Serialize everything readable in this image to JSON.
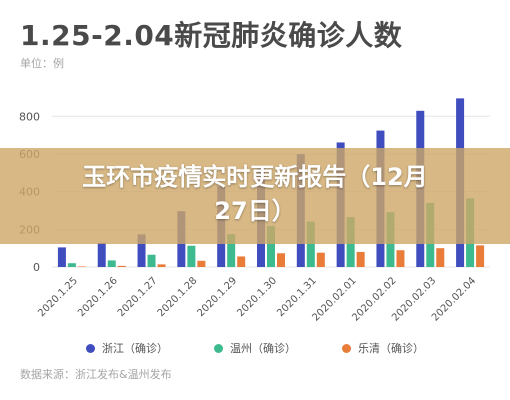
{
  "header": {
    "title": "1.25-2.04新冠肺炎确诊人数",
    "unit": "单位：例"
  },
  "banner": {
    "line1": "玉环市疫情实时更新报告（12月",
    "line2": "27日）"
  },
  "colors": {
    "zhejiang": "#3f4dbf",
    "wenzhou": "#3dbb8e",
    "yueqing": "#ea7c3a",
    "grid": "#e6e6e6",
    "axis_text": "#555555",
    "banner": "#cea868"
  },
  "legend": [
    {
      "label": "浙江（确诊）",
      "color": "#3f4dbf"
    },
    {
      "label": "温州（确诊）",
      "color": "#3dbb8e"
    },
    {
      "label": "乐清（确诊）",
      "color": "#ea7c3a"
    }
  ],
  "source": "数据来源：浙江发布&温州发布",
  "chart_data": {
    "type": "bar",
    "title": "1.25-2.04新冠肺炎确诊人数",
    "categories": [
      "2020.1.25",
      "2020.1.26",
      "2020.1.27",
      "2020.1.28",
      "2020.1.29",
      "2020.1.30",
      "2020.1.31",
      "2020.02.01",
      "2020.02.02",
      "2020.02.03",
      "2020.02.04"
    ],
    "series": [
      {
        "name": "浙江（确诊）",
        "values": [
          104,
          128,
          173,
          296,
          428,
          537,
          599,
          661,
          724,
          829,
          895
        ]
      },
      {
        "name": "温州（确诊）",
        "values": [
          20,
          35,
          65,
          113,
          174,
          218,
          241,
          265,
          291,
          340,
          364
        ]
      },
      {
        "name": "乐清（确诊）",
        "values": [
          3,
          6,
          14,
          33,
          56,
          73,
          76,
          80,
          89,
          100,
          115
        ]
      }
    ],
    "yticks": [
      0,
      200,
      400,
      600,
      800
    ],
    "ylim": [
      0,
      950
    ],
    "grid": true,
    "legend_position": "bottom"
  }
}
